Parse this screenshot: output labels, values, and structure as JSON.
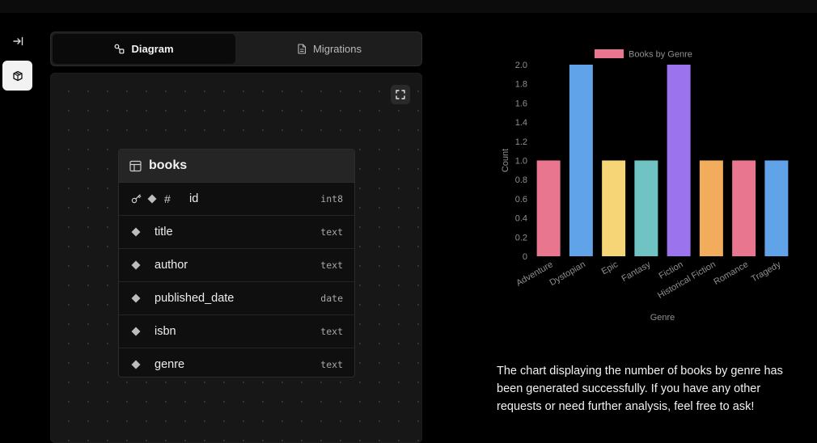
{
  "rail": {
    "collapse_icon": "collapse-right-icon",
    "database_icon": "package-icon"
  },
  "tabs": [
    {
      "label": "Diagram",
      "icon": "diagram-icon",
      "active": true
    },
    {
      "label": "Migrations",
      "icon": "file-icon",
      "active": false
    }
  ],
  "table": {
    "name": "books",
    "columns": [
      {
        "name": "id",
        "type": "int8",
        "primary_key": true
      },
      {
        "name": "title",
        "type": "text",
        "primary_key": false
      },
      {
        "name": "author",
        "type": "text",
        "primary_key": false
      },
      {
        "name": "published_date",
        "type": "date",
        "primary_key": false
      },
      {
        "name": "isbn",
        "type": "text",
        "primary_key": false
      },
      {
        "name": "genre",
        "type": "text",
        "primary_key": false
      }
    ],
    "pk_symbol": "#"
  },
  "chart_data": {
    "type": "bar",
    "categories": [
      "Adventure",
      "Dystopian",
      "Epic",
      "Fantasy",
      "Fiction",
      "Historical Fiction",
      "Romance",
      "Tragedy"
    ],
    "series": [
      {
        "name": "Books by Genre",
        "values": [
          1,
          2,
          1,
          1,
          2,
          1,
          1,
          1
        ]
      }
    ],
    "colors": [
      "#e8768f",
      "#61a3e8",
      "#f5d576",
      "#6fc3c2",
      "#9b73ec",
      "#f2ad5c",
      "#e8768f",
      "#61a3e8"
    ],
    "legend_color": "#e8768f",
    "title": "",
    "xlabel": "Genre",
    "ylabel": "Count",
    "ylim": [
      0,
      2.0
    ],
    "yticks": [
      "0",
      "0.2",
      "0.4",
      "0.6",
      "0.8",
      "1.0",
      "1.2",
      "1.4",
      "1.6",
      "1.8",
      "2.0"
    ],
    "legend_position": "top",
    "grid": false
  },
  "message": {
    "text": "The chart displaying the number of books by genre has been generated successfully. If you have any other requests or need further analysis, feel free to ask!"
  }
}
